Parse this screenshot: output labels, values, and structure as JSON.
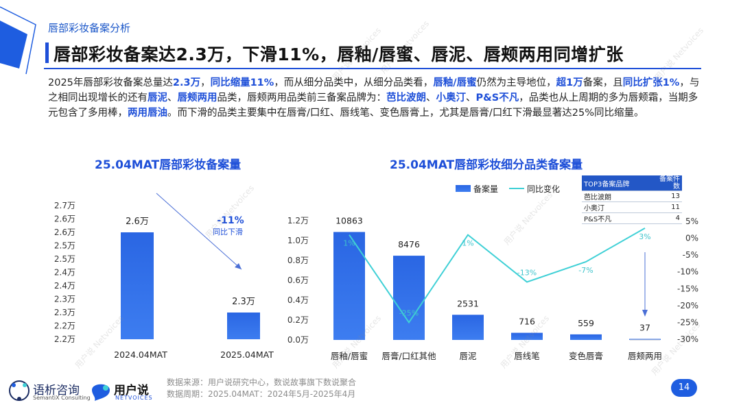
{
  "header": {
    "section_label": "唇部彩妆备案分析"
  },
  "title": "唇部彩妆备案达2.3万，下滑11%，唇釉/唇蜜、唇泥、唇颊两用同增扩张",
  "summary": {
    "segments": [
      {
        "t": "2025年唇部彩妆备案总量达",
        "h": false
      },
      {
        "t": "2.3万",
        "h": true
      },
      {
        "t": "，",
        "h": false
      },
      {
        "t": "同比缩量11%",
        "h": true
      },
      {
        "t": "，而从细分品类中，从细分品类看，",
        "h": false
      },
      {
        "t": "唇釉/唇蜜",
        "h": true
      },
      {
        "t": "仍然为主导地位，",
        "h": false
      },
      {
        "t": "超1万",
        "h": true
      },
      {
        "t": "备案，且",
        "h": false
      },
      {
        "t": "同比扩张1%",
        "h": true
      },
      {
        "t": "，与之相同出现增长的还有",
        "h": false
      },
      {
        "t": "唇泥",
        "h": true
      },
      {
        "t": "、",
        "h": false
      },
      {
        "t": "唇颊两用",
        "h": true
      },
      {
        "t": "品类，唇颊两用品类前三备案品牌为：",
        "h": false
      },
      {
        "t": "芭比波朗",
        "h": true
      },
      {
        "t": "、",
        "h": false
      },
      {
        "t": "小奥汀",
        "h": true
      },
      {
        "t": "、",
        "h": false
      },
      {
        "t": "P&S不凡",
        "h": true
      },
      {
        "t": "，品类也从上周期的多为唇颊霜，当期多元包含了多用棒，",
        "h": false
      },
      {
        "t": "两用唇油",
        "h": true
      },
      {
        "t": "。而下滑的品类主要集中在唇膏/口红、唇线笔、变色唇膏上，尤其是唇膏/口红下滑最显著达25%同比缩量。",
        "h": false
      }
    ]
  },
  "chart_data": [
    {
      "type": "bar",
      "title": "25.04MAT唇部彩妆备案量",
      "categories": [
        "2024.04MAT",
        "2025.04MAT"
      ],
      "values": [
        2.6,
        2.3
      ],
      "value_labels": [
        "2.6万",
        "2.3万"
      ],
      "y_ticks": [
        "2.2万",
        "2.2万",
        "2.3万",
        "2.3万",
        "2.4万",
        "2.4万",
        "2.5万",
        "2.5万",
        "2.6万",
        "2.6万",
        "2.7万"
      ],
      "ylim": [
        2.2,
        2.7
      ],
      "annotation": {
        "value": "-11%",
        "text": "同比下滑"
      }
    },
    {
      "type": "bar",
      "title": "25.04MAT唇部彩妆细分品类备案量",
      "legend": [
        "备案量",
        "同比变化"
      ],
      "categories": [
        "唇釉/唇蜜",
        "唇膏/口红其他",
        "唇泥",
        "唇线笔",
        "变色唇膏",
        "唇颊两用"
      ],
      "series": [
        {
          "name": "备案量",
          "type": "bar",
          "values": [
            10863,
            8476,
            2531,
            716,
            559,
            37
          ]
        },
        {
          "name": "同比变化",
          "type": "line",
          "values": [
            1,
            -25,
            1,
            -13,
            -7,
            3
          ],
          "labels": [
            "1%",
            "-25%",
            "1%",
            "-13%",
            "-7%",
            "3%"
          ]
        }
      ],
      "y_left_ticks": [
        "0.0万",
        "0.2万",
        "0.4万",
        "0.6万",
        "0.8万",
        "1.0万",
        "1.2万"
      ],
      "y_left_lim": [
        0,
        12000
      ],
      "y_right_ticks": [
        "-30%",
        "-25%",
        "-20%",
        "-15%",
        "-10%",
        "-5%",
        "0%",
        "5%"
      ],
      "y_right_lim": [
        -30,
        5
      ]
    }
  ],
  "top3_table": {
    "headers": [
      "TOP3备案品牌",
      "备案件数"
    ],
    "rows": [
      [
        "芭比波朗",
        "13"
      ],
      [
        "小奥汀",
        "11"
      ],
      [
        "P&S不凡",
        "4"
      ]
    ]
  },
  "footer": {
    "source": "数据来源：用户说研究中心，数说故事旗下数说聚合",
    "period": "数据周期：2025.04MAT：2024年5月-2025年4月",
    "page": "14"
  },
  "logos": {
    "semantix_cn": "语析咨询",
    "semantix_en": "SemantiX Consulting",
    "netvoices_cn": "用户说",
    "netvoices_en": "NETVOICES"
  },
  "watermark": "用户说 Netvoices",
  "colors": {
    "accent": "#1e4fd8",
    "bar": "#2d6ee6",
    "line": "#3fd0d6"
  }
}
